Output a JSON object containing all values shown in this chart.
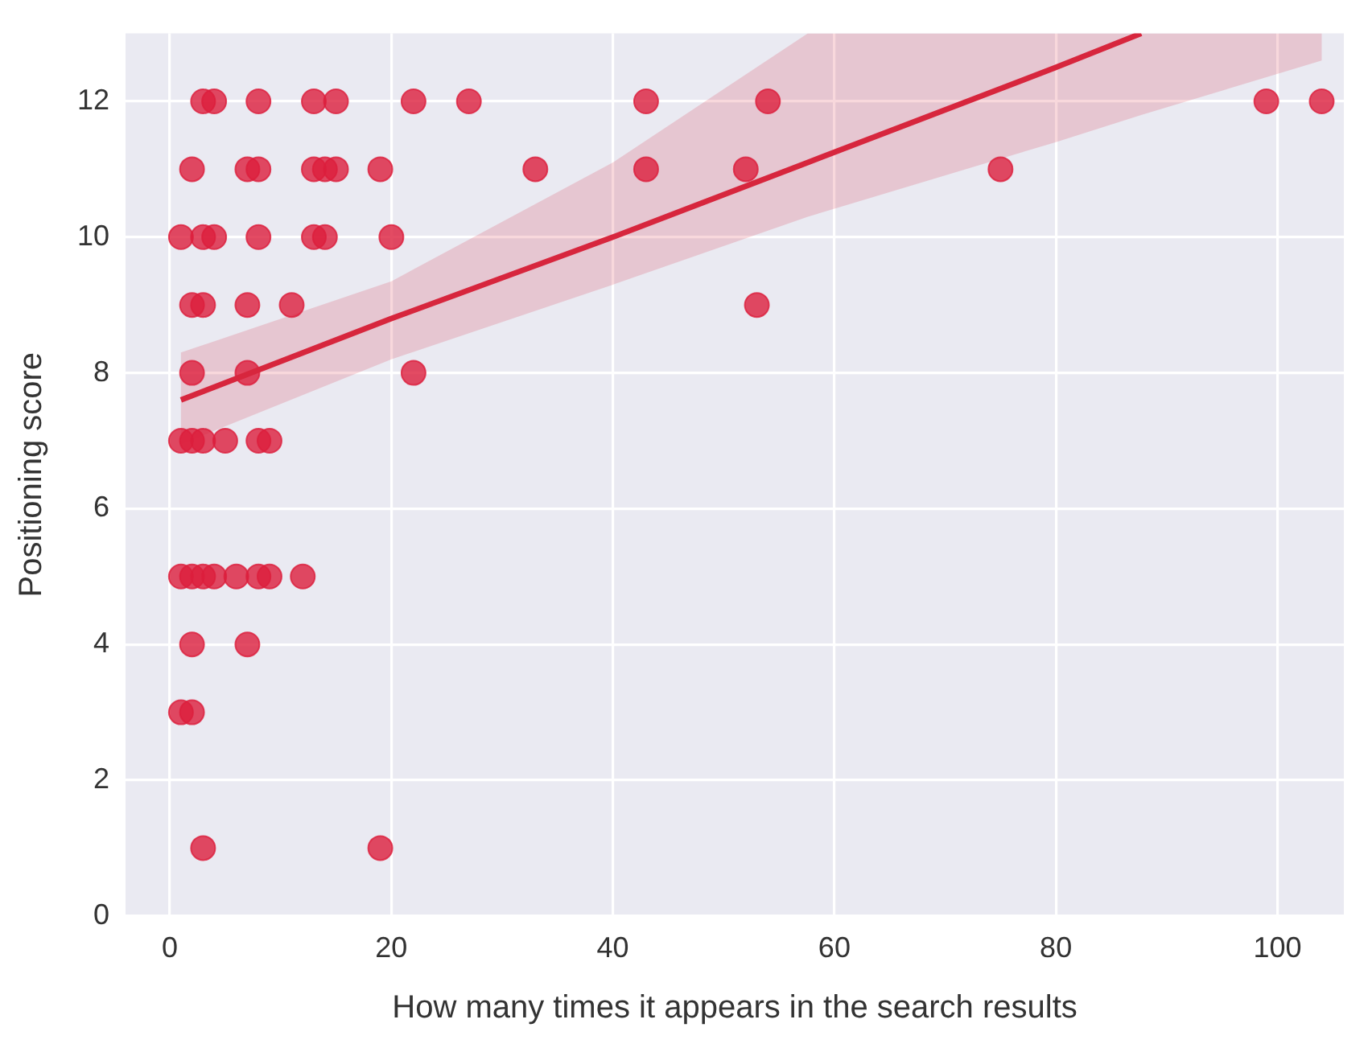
{
  "chart_data": {
    "type": "scatter",
    "xlabel": "How many times it appears in the search results",
    "ylabel": "Positioning score",
    "xlim": [
      -4,
      106
    ],
    "xticks": [
      0,
      20,
      40,
      60,
      80,
      100
    ],
    "ylim": [
      0,
      13
    ],
    "yticks": [
      0,
      2,
      4,
      6,
      8,
      10,
      12
    ],
    "grid": true,
    "marker": "circle",
    "series": [
      {
        "type": "scatter",
        "color": "#dc1e3c",
        "x": [
          3,
          4,
          8,
          13,
          15,
          22,
          27,
          43,
          54,
          99,
          104,
          2,
          7,
          8,
          13,
          14,
          15,
          19,
          33,
          43,
          52,
          75,
          1,
          3,
          4,
          8,
          13,
          14,
          20,
          2,
          3,
          7,
          11,
          53,
          2,
          7,
          22,
          1,
          2,
          3,
          5,
          8,
          9,
          1,
          2,
          3,
          4,
          6,
          8,
          9,
          12,
          2,
          7,
          1,
          2,
          3,
          19
        ],
        "values": [
          12,
          12,
          12,
          12,
          12,
          12,
          12,
          12,
          12,
          12,
          12,
          11,
          11,
          11,
          11,
          11,
          11,
          11,
          11,
          11,
          11,
          11,
          10,
          10,
          10,
          10,
          10,
          10,
          10,
          9,
          9,
          9,
          9,
          9,
          8,
          8,
          8,
          7,
          7,
          7,
          7,
          7,
          7,
          5,
          5,
          5,
          5,
          5,
          5,
          5,
          5,
          4,
          4,
          3,
          3,
          1,
          1
        ]
      },
      {
        "type": "line",
        "color": "#d7263d",
        "marker": "none",
        "x": [
          1,
          20,
          40,
          57.6,
          80,
          87.7,
          104
        ],
        "values": [
          7.6,
          8.8,
          10.0,
          11.1,
          12.5,
          13,
          null
        ],
        "lower": [
          6.95,
          8.2,
          9.3,
          10.3,
          11.4,
          11.8,
          12.6
        ],
        "upper": [
          8.3,
          9.35,
          11.1,
          13,
          13,
          13,
          13
        ]
      }
    ]
  }
}
